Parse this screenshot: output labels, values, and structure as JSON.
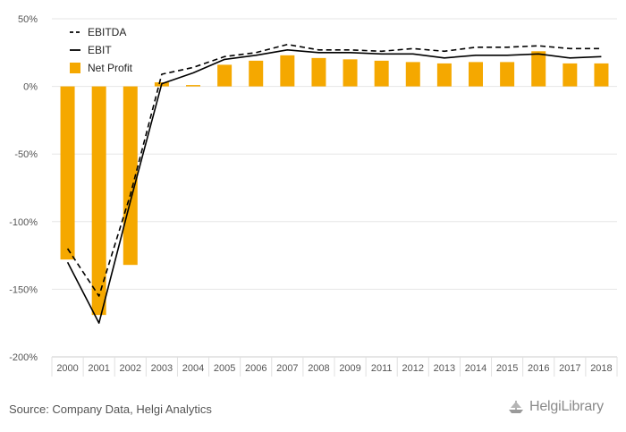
{
  "chart_data": {
    "type": "bar+line",
    "categories": [
      "2000",
      "2001",
      "2002",
      "2003",
      "2004",
      "2005",
      "2006",
      "2007",
      "2008",
      "2009",
      "2011",
      "2012",
      "2013",
      "2014",
      "2015",
      "2016",
      "2017",
      "2018"
    ],
    "series": [
      {
        "name": "EBITDA",
        "type": "line",
        "style": "dashed",
        "color": "#000000",
        "values": [
          -120,
          -155,
          -80,
          9,
          14,
          22,
          25,
          31,
          27,
          27,
          26,
          28,
          26,
          29,
          29,
          30,
          28,
          28
        ]
      },
      {
        "name": "EBIT",
        "type": "line",
        "style": "solid",
        "color": "#000000",
        "values": [
          -130,
          -175,
          -85,
          2,
          10,
          20,
          23,
          27,
          25,
          25,
          24,
          24,
          21,
          23,
          23,
          24,
          21,
          22
        ]
      },
      {
        "name": "Net Profit",
        "type": "bar",
        "color": "#F5A800",
        "values": [
          -128,
          -169,
          -132,
          3,
          1,
          16,
          19,
          23,
          21,
          20,
          19,
          18,
          17,
          18,
          18,
          26,
          17,
          17
        ]
      }
    ],
    "ylim": [
      -200,
      50
    ],
    "yticks": [
      50,
      0,
      -50,
      -100,
      -150,
      -200
    ],
    "ytick_labels": [
      "50%",
      "0%",
      "-50%",
      "-100%",
      "-150%",
      "-200%"
    ],
    "grid": true,
    "legend_position": "top-left"
  },
  "footer": {
    "source": "Source: Company Data, Helgi Analytics",
    "logo_text": "HelgiLibrary"
  }
}
